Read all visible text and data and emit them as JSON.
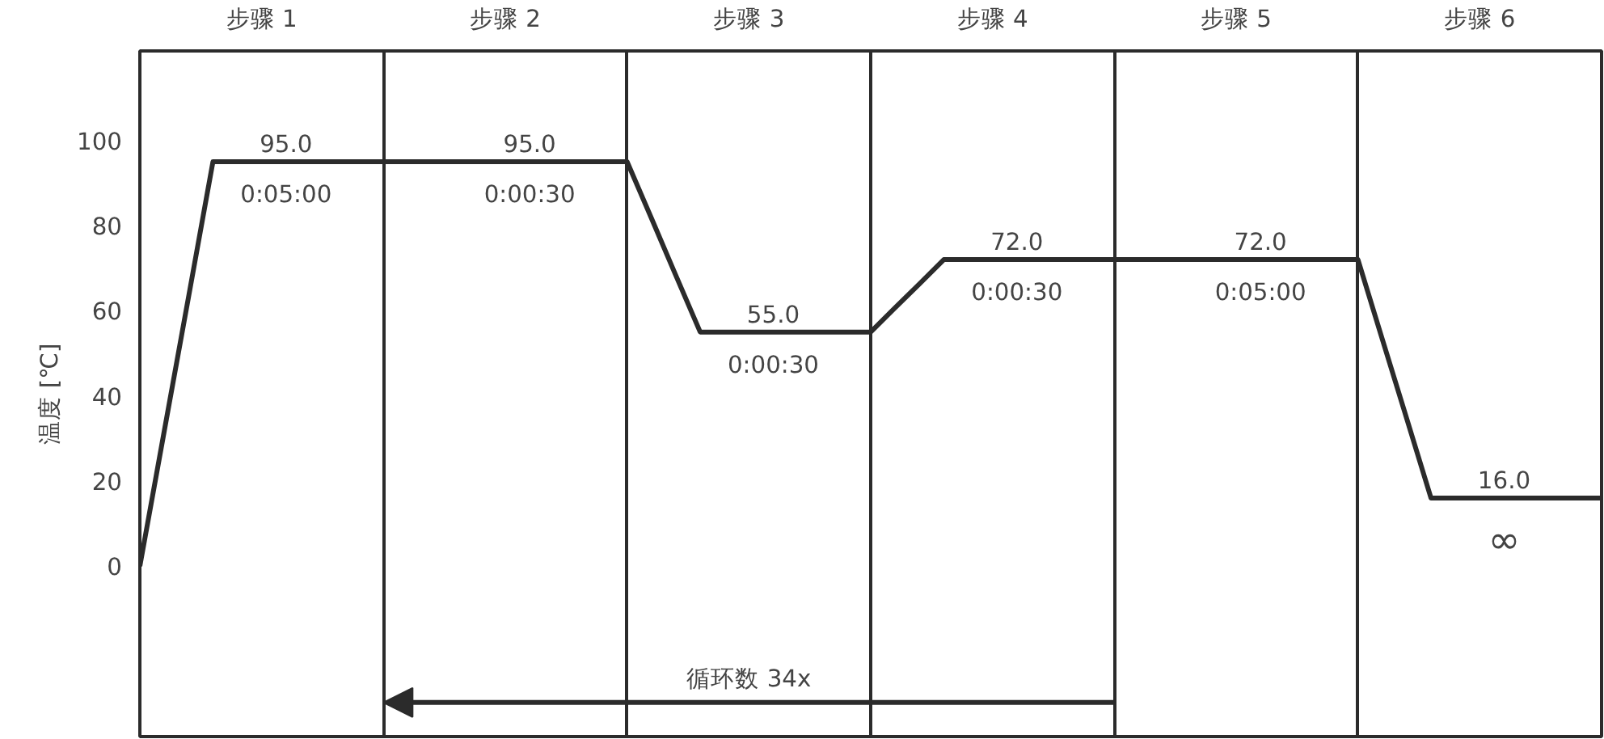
{
  "chart_data": {
    "type": "line",
    "ylabel": "温度 [℃]",
    "categories": [
      null,
      null,
      null,
      null,
      null,
      "步骤 1",
      null,
      null,
      null,
      null,
      null,
      null,
      null,
      null,
      null,
      "步骤 2",
      null,
      null,
      null,
      null,
      null,
      null,
      null,
      null,
      null,
      "步骤 3",
      null,
      null,
      null,
      null,
      null,
      null,
      null,
      null,
      null,
      "步骤 4",
      null,
      null,
      null,
      null,
      null,
      null,
      null,
      null,
      null,
      "步骤 5",
      null,
      null,
      null,
      null,
      null,
      null,
      null,
      null,
      null,
      "步骤 6",
      null,
      null,
      null,
      null,
      null
    ],
    "series": [
      {
        "color": "#2b2b2b",
        "values": [
          0,
          31.7,
          63.3,
          95,
          95,
          95,
          95,
          95,
          95,
          95,
          95,
          95,
          95,
          95,
          95,
          95,
          95,
          95,
          95,
          95,
          95,
          81.7,
          68.3,
          55,
          55,
          55,
          55,
          55,
          55,
          55,
          55,
          60.7,
          66.3,
          72,
          72,
          72,
          72,
          72,
          72,
          72,
          72,
          72,
          72,
          72,
          72,
          72,
          72,
          72,
          72,
          72,
          72,
          53.3,
          34.7,
          16,
          16,
          16,
          16,
          16,
          16,
          16,
          16
        ]
      }
    ],
    "value_labels": [
      null,
      null,
      null,
      null,
      null,
      null,
      "95.0",
      null,
      null,
      null,
      null,
      null,
      null,
      null,
      null,
      null,
      "95.0",
      null,
      null,
      null,
      null,
      null,
      null,
      null,
      null,
      null,
      "55.0",
      null,
      null,
      null,
      null,
      null,
      null,
      null,
      null,
      null,
      "72.0",
      null,
      null,
      null,
      null,
      null,
      null,
      null,
      null,
      null,
      "72.0",
      null,
      null,
      null,
      null,
      null,
      null,
      null,
      null,
      null,
      "16.0",
      null,
      null,
      null,
      null
    ],
    "grid": "x",
    "ylim": [
      -40,
      121
    ],
    "yticks": [
      0,
      20,
      40,
      60,
      80,
      100
    ],
    "annotations": [
      "0:05:00",
      "0:00:30",
      "0:00:30",
      "0:00:30",
      "0:05:00",
      "∞",
      "循环数 34x"
    ]
  }
}
